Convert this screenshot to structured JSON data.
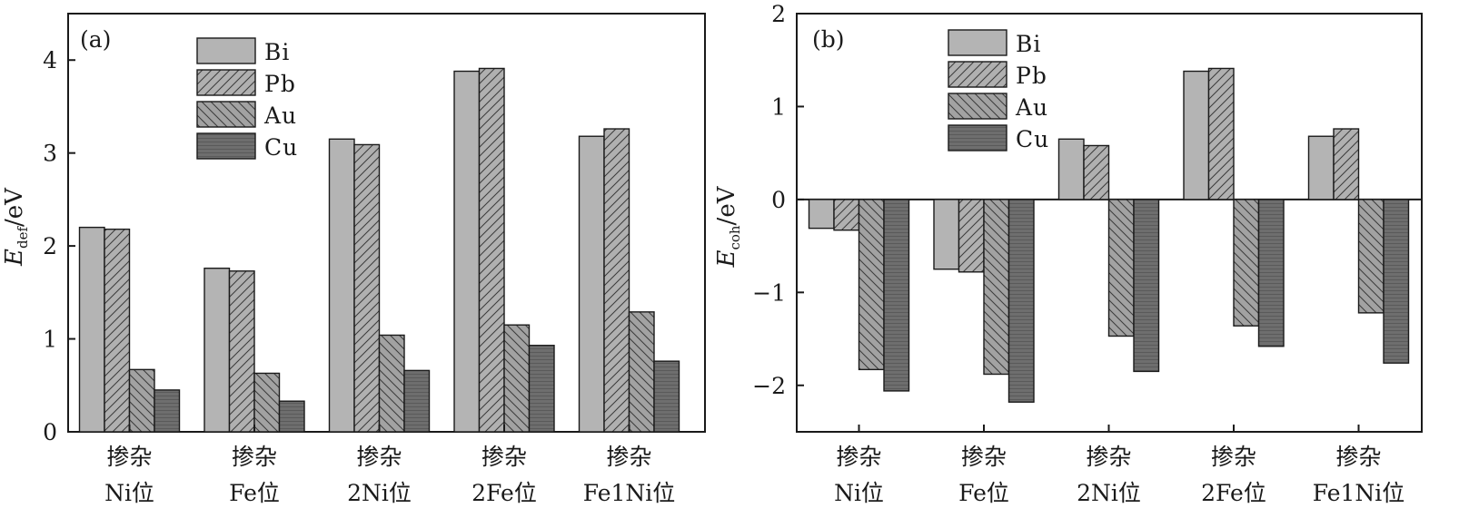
{
  "chart_data": [
    {
      "panel_label": "(a)",
      "type": "bar",
      "ylabel": {
        "main": "E",
        "sub": "def",
        "unit": "/eV"
      },
      "ylim": [
        0,
        4.5
      ],
      "yticks": [
        0,
        1,
        2,
        3,
        4
      ],
      "categories": [
        {
          "line1": "掺杂",
          "line2": "Ni位"
        },
        {
          "line1": "掺杂",
          "line2": "Fe位"
        },
        {
          "line1": "掺杂",
          "line2": "2Ni位"
        },
        {
          "line1": "掺杂",
          "line2": "2Fe位"
        },
        {
          "line1": "掺杂",
          "line2": "Fe1Ni位"
        }
      ],
      "legend_position": "top-left",
      "series": [
        {
          "name": "Bi",
          "values": [
            2.2,
            1.76,
            3.15,
            3.88,
            3.18
          ]
        },
        {
          "name": "Pb",
          "values": [
            2.18,
            1.73,
            3.09,
            3.91,
            3.26
          ]
        },
        {
          "name": "Au",
          "values": [
            0.67,
            0.63,
            1.04,
            1.15,
            1.29
          ]
        },
        {
          "name": "Cu",
          "values": [
            0.45,
            0.33,
            0.66,
            0.93,
            0.76
          ]
        }
      ]
    },
    {
      "panel_label": "(b)",
      "type": "bar",
      "ylabel": {
        "main": "E",
        "sub": "coh",
        "unit": "/eV"
      },
      "ylim": [
        -2.5,
        2
      ],
      "yticks": [
        -2,
        -1,
        0,
        1,
        2
      ],
      "ytick_labels": [
        "−2",
        "−1",
        "0",
        "1",
        "2"
      ],
      "categories": [
        {
          "line1": "掺杂",
          "line2": "Ni位"
        },
        {
          "line1": "掺杂",
          "line2": "Fe位"
        },
        {
          "line1": "掺杂",
          "line2": "2Ni位"
        },
        {
          "line1": "掺杂",
          "line2": "2Fe位"
        },
        {
          "line1": "掺杂",
          "line2": "Fe1Ni位"
        }
      ],
      "legend_position": "top-left",
      "series": [
        {
          "name": "Bi",
          "values": [
            -0.31,
            -0.75,
            0.65,
            1.38,
            0.68
          ]
        },
        {
          "name": "Pb",
          "values": [
            -0.33,
            -0.78,
            0.58,
            1.41,
            0.76
          ]
        },
        {
          "name": "Au",
          "values": [
            -1.83,
            -1.88,
            -1.47,
            -1.36,
            -1.22
          ]
        },
        {
          "name": "Cu",
          "values": [
            -2.06,
            -2.18,
            -1.85,
            -1.58,
            -1.76
          ]
        }
      ]
    }
  ],
  "series_colors": {
    "Bi": "#b4b4b4",
    "Pb": "#a6a6a6",
    "Au": "#a0a0a0",
    "Cu": "#6e6e6e"
  }
}
